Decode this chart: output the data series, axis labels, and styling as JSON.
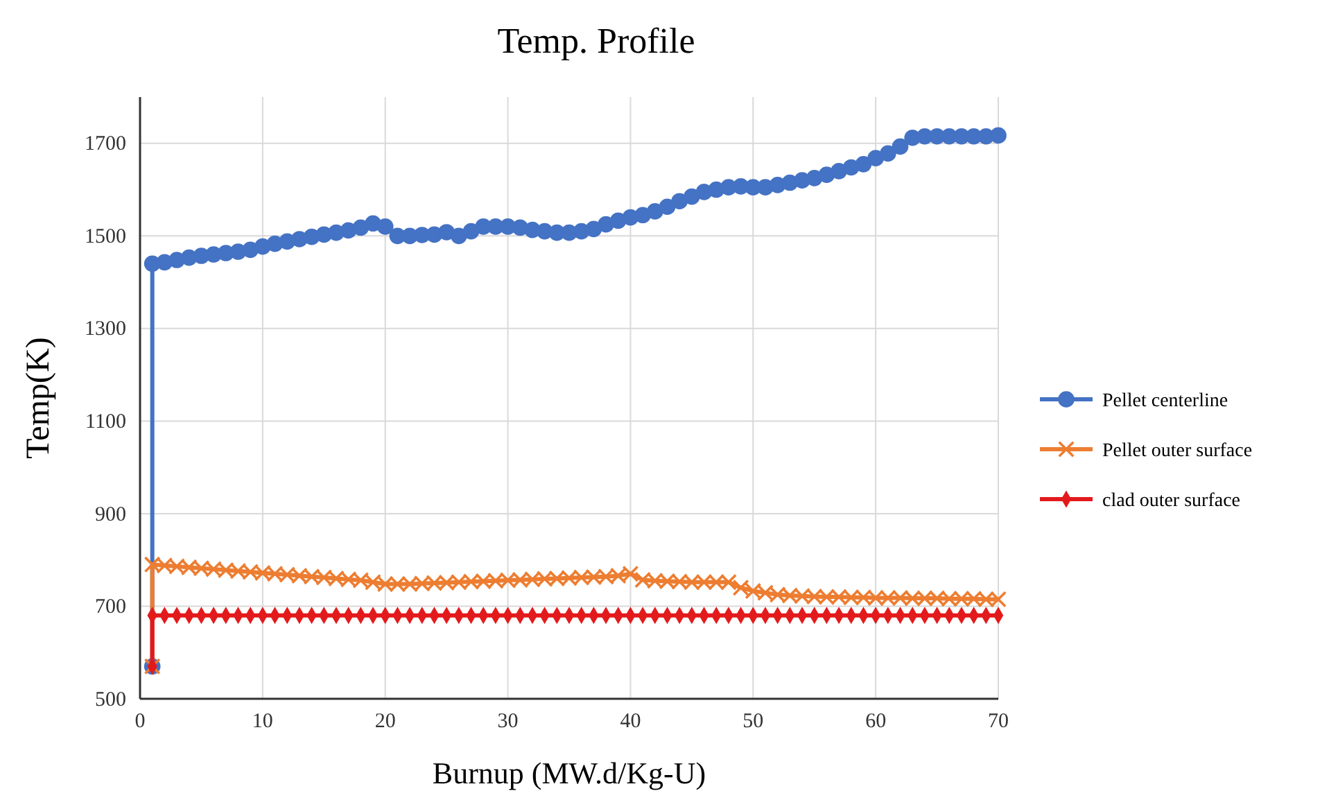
{
  "chart_data": {
    "type": "line",
    "title": "Temp. Profile",
    "xlabel": "Burnup (MW.d/Kg-U)",
    "ylabel": "Temp(K)",
    "x": [
      1,
      1,
      2,
      3,
      4,
      5,
      6,
      7,
      8,
      9,
      10,
      11,
      12,
      13,
      14,
      15,
      16,
      17,
      18,
      19,
      20,
      21,
      22,
      23,
      24,
      25,
      26,
      27,
      28,
      29,
      30,
      31,
      32,
      33,
      34,
      35,
      36,
      37,
      38,
      39,
      40,
      41,
      42,
      43,
      44,
      45,
      46,
      47,
      48,
      49,
      50,
      51,
      52,
      53,
      54,
      55,
      56,
      57,
      58,
      59,
      60,
      61,
      62,
      63,
      64,
      65,
      66,
      67,
      68,
      69,
      70
    ],
    "series": [
      {
        "name": "Pellet centerline",
        "color": "#4472c4",
        "marker": "circle",
        "values": [
          570,
          1440,
          1443,
          1448,
          1453,
          1457,
          1460,
          1463,
          1466,
          1470,
          1477,
          1483,
          1488,
          1493,
          1498,
          1503,
          1507,
          1512,
          1518,
          1527,
          1520,
          1500,
          1500,
          1502,
          1503,
          1508,
          1500,
          1510,
          1520,
          1520,
          1520,
          1518,
          1513,
          1510,
          1507,
          1507,
          1510,
          1515,
          1525,
          1533,
          1540,
          1545,
          1553,
          1563,
          1575,
          1585,
          1595,
          1600,
          1605,
          1607,
          1605,
          1605,
          1610,
          1615,
          1620,
          1625,
          1632,
          1640,
          1648,
          1655,
          1668,
          1678,
          1693,
          1712,
          1715,
          1715,
          1715,
          1715,
          1715,
          1715,
          1717
        ]
      },
      {
        "name": "Pellet outer surface",
        "color": "#ed7d31",
        "marker": "cross",
        "values": [
          570,
          790,
          788,
          786,
          784,
          782,
          780,
          778,
          776,
          774,
          772,
          770,
          768,
          766,
          764,
          762,
          760,
          758,
          756,
          752,
          748,
          748,
          748,
          749,
          750,
          751,
          752,
          753,
          754,
          755,
          756,
          757,
          758,
          759,
          760,
          761,
          762,
          763,
          764,
          766,
          770,
          757,
          755,
          754,
          753,
          752,
          752,
          752,
          752,
          740,
          733,
          729,
          725,
          723,
          722,
          721,
          720,
          720,
          719,
          719,
          718,
          718,
          718,
          717,
          717,
          717,
          716,
          716,
          716,
          715,
          715
        ]
      },
      {
        "name": "clad outer surface",
        "color": "#e31a1c",
        "marker": "diamond",
        "values": [
          570,
          680,
          680,
          680,
          680,
          680,
          680,
          680,
          680,
          680,
          680,
          680,
          680,
          680,
          680,
          680,
          680,
          680,
          680,
          680,
          680,
          680,
          680,
          680,
          680,
          680,
          680,
          680,
          680,
          680,
          680,
          680,
          680,
          680,
          680,
          680,
          680,
          680,
          680,
          680,
          680,
          680,
          680,
          680,
          680,
          680,
          680,
          680,
          680,
          680,
          680,
          680,
          680,
          680,
          680,
          680,
          680,
          680,
          680,
          680,
          680,
          680,
          680,
          680,
          680,
          680,
          680,
          680,
          680,
          680,
          680
        ]
      }
    ],
    "xlim": [
      0,
      70
    ],
    "xticks": [
      0,
      10,
      20,
      30,
      40,
      50,
      60,
      70
    ],
    "ylim": [
      500,
      1800
    ],
    "yticks": [
      500,
      700,
      900,
      1100,
      1300,
      1500,
      1700
    ],
    "grid": true,
    "legend": "right"
  }
}
